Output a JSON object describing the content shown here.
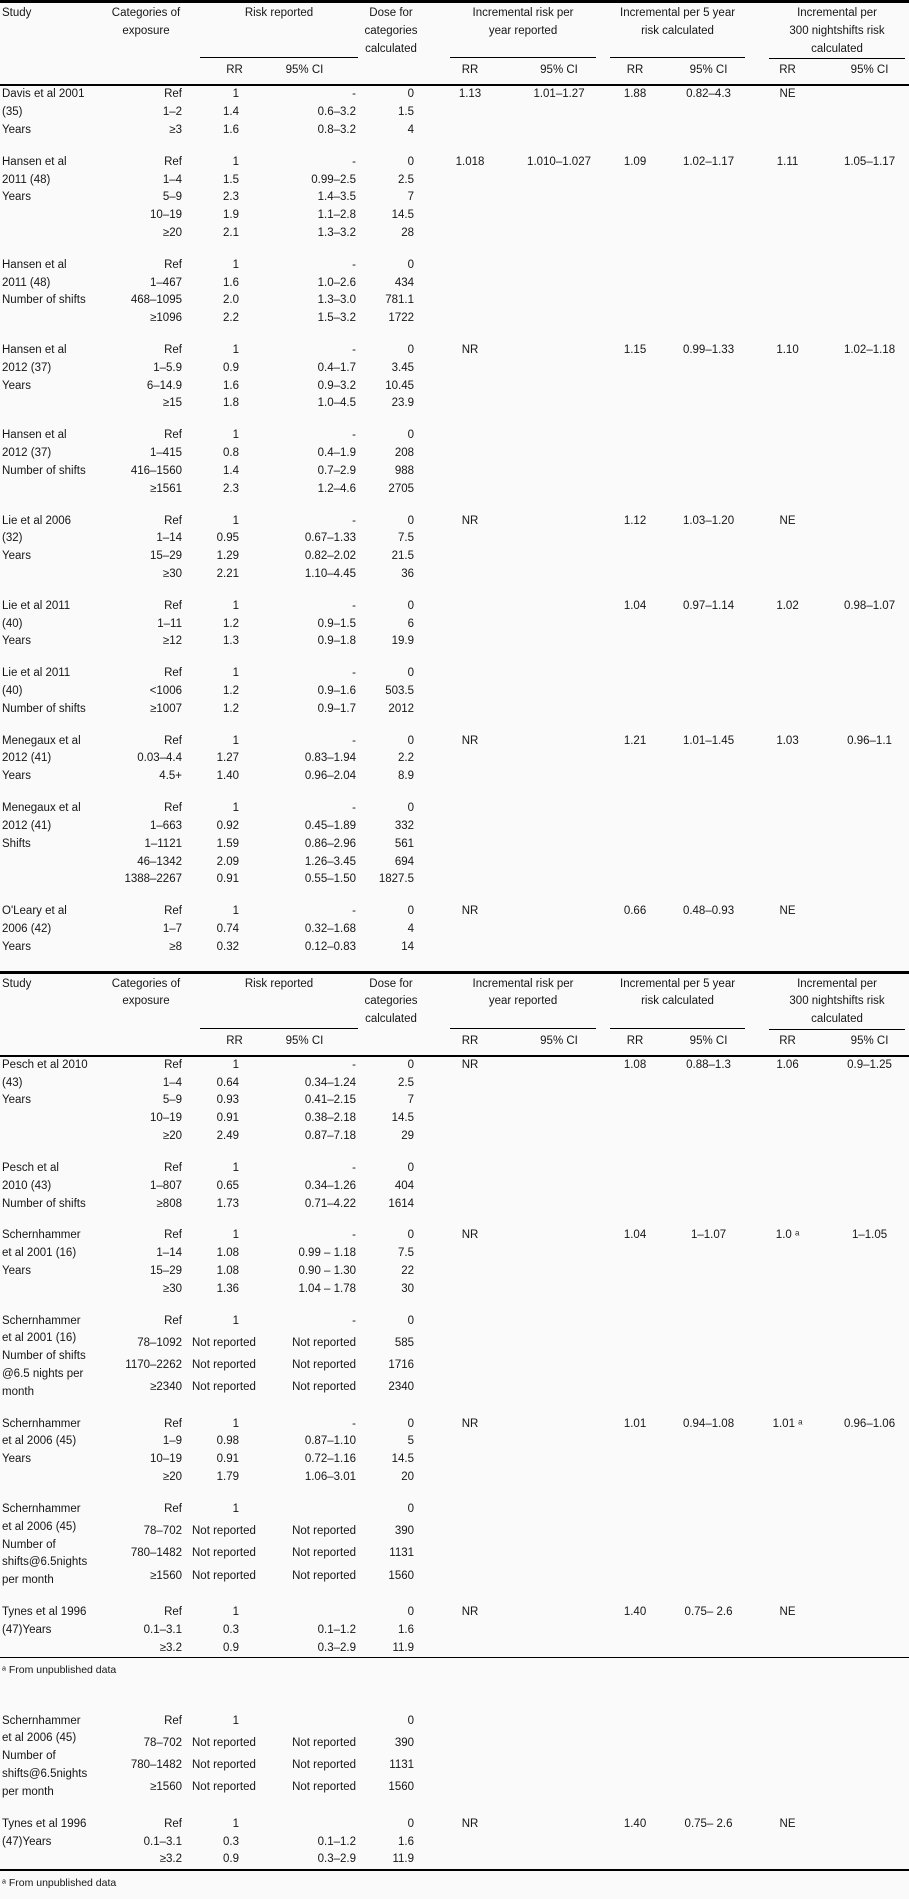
{
  "table": {
    "columns": {
      "study": "Study",
      "categories": "Categories of\nexposure",
      "risk_reported": "Risk reported",
      "dose": "Dose for\ncategories\ncalculated",
      "inc_year": "Incremental risk per\nyear reported",
      "inc_5year": "Incremental per 5 year\nrisk calculated",
      "inc_300": "Incremental per\n300 nightshifts risk\ncalculated",
      "rr": "RR",
      "ci": "95% CI"
    },
    "sections": [
      {
        "show_header": true,
        "blocks": [
          {
            "study": "Davis et al 2001\n(35)\nYears",
            "rows": [
              [
                "Ref",
                "1",
                "-",
                "0"
              ],
              [
                "1–2",
                "1.4",
                "0.6–3.2",
                "1.5"
              ],
              [
                "≥3",
                "1.6",
                "0.8–3.2",
                "4"
              ]
            ],
            "inc": [
              "1.13",
              "1.01–1.27",
              "1.88",
              "0.82–4.3",
              "NE",
              ""
            ]
          },
          {
            "study": "Hansen et al\n2011 (48)\nYears",
            "rows": [
              [
                "Ref",
                "1",
                "-",
                "0"
              ],
              [
                "1–4",
                "1.5",
                "0.99–2.5",
                "2.5"
              ],
              [
                "5–9",
                "2.3",
                "1.4–3.5",
                "7"
              ],
              [
                "10–19",
                "1.9",
                "1.1–2.8",
                "14.5"
              ],
              [
                "≥20",
                "2.1",
                "1.3–3.2",
                "28"
              ]
            ],
            "inc": [
              "1.018",
              "1.010–1.027",
              "1.09",
              "1.02–1.17",
              "1.11",
              "1.05–1.17"
            ]
          },
          {
            "study": "Hansen et al\n2011 (48)\nNumber of shifts",
            "rows": [
              [
                "Ref",
                "1",
                "-",
                "0"
              ],
              [
                "1–467",
                "1.6",
                "1.0–2.6",
                "434"
              ],
              [
                "468–1095",
                "2.0",
                "1.3–3.0",
                "781.1"
              ],
              [
                "≥1096",
                "2.2",
                "1.5–3.2",
                "1722"
              ]
            ]
          },
          {
            "study": "Hansen et al\n2012 (37)\nYears",
            "rows": [
              [
                "Ref",
                "1",
                "-",
                "0"
              ],
              [
                "1–5.9",
                "0.9",
                "0.4–1.7",
                "3.45"
              ],
              [
                "6–14.9",
                "1.6",
                "0.9–3.2",
                "10.45"
              ],
              [
                "≥15",
                "1.8",
                "1.0–4.5",
                "23.9"
              ]
            ],
            "inc": [
              "NR",
              "",
              "1.15",
              "0.99–1.33",
              "1.10",
              "1.02–1.18"
            ]
          },
          {
            "study": "Hansen et al\n2012 (37)\nNumber of shifts",
            "rows": [
              [
                "Ref",
                "1",
                "-",
                "0"
              ],
              [
                "1–415",
                "0.8",
                "0.4–1.9",
                "208"
              ],
              [
                "416–1560",
                "1.4",
                "0.7–2.9",
                "988"
              ],
              [
                "≥1561",
                "2.3",
                "1.2–4.6",
                "2705"
              ]
            ]
          },
          {
            "study": "Lie et al 2006\n(32)\nYears",
            "rows": [
              [
                "Ref",
                "1",
                "-",
                "0"
              ],
              [
                "1–14",
                "0.95",
                "0.67–1.33",
                "7.5"
              ],
              [
                "15–29",
                "1.29",
                "0.82–2.02",
                "21.5"
              ],
              [
                "≥30",
                "2.21",
                "1.10–4.45",
                "36"
              ]
            ],
            "inc": [
              "NR",
              "",
              "1.12",
              "1.03–1.20",
              "NE",
              ""
            ]
          },
          {
            "study": "Lie et al 2011\n(40)\nYears",
            "rows": [
              [
                "Ref",
                "1",
                "-",
                "0"
              ],
              [
                "1–11",
                "1.2",
                "0.9–1.5",
                "6"
              ],
              [
                "≥12",
                "1.3",
                "0.9–1.8",
                "19.9"
              ]
            ],
            "inc": [
              "",
              "",
              "1.04",
              "0.97–1.14",
              "1.02",
              "0.98–1.07"
            ]
          },
          {
            "study": "Lie et al 2011\n(40)\nNumber of shifts",
            "rows": [
              [
                "Ref",
                "1",
                "-",
                "0"
              ],
              [
                "<1006",
                "1.2",
                "0.9–1.6",
                "503.5"
              ],
              [
                "≥1007",
                "1.2",
                "0.9–1.7",
                "2012"
              ]
            ]
          },
          {
            "study": "Menegaux et al\n2012 (41)\nYears",
            "rows": [
              [
                "Ref",
                "1",
                "-",
                "0"
              ],
              [
                "0.03–4.4",
                "1.27",
                "0.83–1.94",
                "2.2"
              ],
              [
                "4.5+",
                "1.40",
                "0.96–2.04",
                "8.9"
              ]
            ],
            "inc": [
              "NR",
              "",
              "1.21",
              "1.01–1.45",
              "1.03",
              "0.96–1.1"
            ]
          },
          {
            "study": "Menegaux et al\n2012 (41)\nShifts",
            "rows": [
              [
                "Ref",
                "1",
                "-",
                "0"
              ],
              [
                "1–663",
                "0.92",
                "0.45–1.89",
                "332"
              ],
              [
                "1–1121",
                "1.59",
                "0.86–2.96",
                "561"
              ],
              [
                "46–1342",
                "2.09",
                "1.26–3.45",
                "694"
              ],
              [
                "1388–2267",
                "0.91",
                "0.55–1.50",
                "1827.5"
              ]
            ]
          },
          {
            "study": "O'Leary et al\n2006 (42)\nYears",
            "rows": [
              [
                "Ref",
                "1",
                "-",
                "0"
              ],
              [
                "1–7",
                "0.74",
                "0.32–1.68",
                "4"
              ],
              [
                "≥8",
                "0.32",
                "0.12–0.83",
                "14"
              ]
            ],
            "inc": [
              "NR",
              "",
              "0.66",
              "0.48–0.93",
              "NE",
              ""
            ]
          }
        ]
      },
      {
        "show_header": true,
        "footnote": "ᵃ From unpublished data",
        "heavy_rule": false,
        "blocks": [
          {
            "study": "Pesch et al 2010\n(43)\nYears",
            "rows": [
              [
                "Ref",
                "1",
                "-",
                "0"
              ],
              [
                "1–4",
                "0.64",
                "0.34–1.24",
                "2.5"
              ],
              [
                "5–9",
                "0.93",
                "0.41–2.15",
                "7"
              ],
              [
                "10–19",
                "0.91",
                "0.38–2.18",
                "14.5"
              ],
              [
                "≥20",
                "2.49",
                "0.87–7.18",
                "29"
              ]
            ],
            "inc": [
              "NR",
              "",
              "1.08",
              "0.88–1.3",
              "1.06",
              "0.9–1.25"
            ]
          },
          {
            "study": "Pesch et al\n2010 (43)\nNumber of shifts",
            "rows": [
              [
                "Ref",
                "1",
                "-",
                "0"
              ],
              [
                "1–807",
                "0.65",
                "0.34–1.26",
                "404"
              ],
              [
                "≥808",
                "1.73",
                "0.71–4.22",
                "1614"
              ]
            ]
          },
          {
            "study": "Schernhammer\net al 2001 (16)\nYears",
            "rows": [
              [
                "Ref",
                "1",
                "-",
                "0"
              ],
              [
                "1–14",
                "1.08",
                "0.99 – 1.18",
                "7.5"
              ],
              [
                "15–29",
                "1.08",
                "0.90 – 1.30",
                "22"
              ],
              [
                "≥30",
                "1.36",
                "1.04 – 1.78",
                "30"
              ]
            ],
            "inc": [
              "NR",
              "",
              "1.04",
              "1–1.07",
              "1.0 ᵃ",
              "1–1.05"
            ]
          },
          {
            "study": "Schernhammer\net al 2001 (16)\nNumber of shifts\n@6.5 nights per\nmonth",
            "rows": [
              [
                "Ref",
                "1",
                "-",
                "0"
              ],
              [
                "78–1092",
                "Not reported",
                "Not reported",
                "585"
              ],
              [
                "1170–2262",
                "Not reported",
                "Not reported",
                "1716"
              ],
              [
                "≥2340",
                "Not reported",
                "Not reported",
                "2340"
              ]
            ]
          },
          {
            "study": "Schernhammer\net al 2006 (45)\nYears",
            "rows": [
              [
                "Ref",
                "1",
                "-",
                "0"
              ],
              [
                "1–9",
                "0.98",
                "0.87–1.10",
                "5"
              ],
              [
                "10–19",
                "0.91",
                "0.72–1.16",
                "14.5"
              ],
              [
                "≥20",
                "1.79",
                "1.06–3.01",
                "20"
              ]
            ],
            "inc": [
              "NR",
              "",
              "1.01",
              "0.94–1.08",
              "1.01 ᵃ",
              "0.96–1.06"
            ]
          },
          {
            "study": "Schernhammer\net al 2006 (45)\nNumber of\nshifts@6.5nights\nper month",
            "rows": [
              [
                "Ref",
                "1",
                "",
                "0"
              ],
              [
                "78–702",
                "Not reported",
                "Not reported",
                "390"
              ],
              [
                "780–1482",
                "Not reported",
                "Not reported",
                "1131"
              ],
              [
                "≥1560",
                "Not reported",
                "Not reported",
                "1560"
              ]
            ]
          },
          {
            "study": "Tynes et al 1996\n(47)Years",
            "rows": [
              [
                "Ref",
                "1",
                "",
                "0"
              ],
              [
                "0.1–3.1",
                "0.3",
                "0.1–1.2",
                "1.6"
              ],
              [
                "≥3.2",
                "0.9",
                "0.3–2.9",
                "11.9"
              ]
            ],
            "inc": [
              "NR",
              "",
              "1.40",
              "0.75– 2.6",
              "NE",
              ""
            ]
          }
        ]
      },
      {
        "show_header": false,
        "footnote": "ᵃ From unpublished data",
        "heavy_rule": true,
        "blocks": [
          {
            "study": "Schernhammer\net al 2006 (45)\nNumber of\nshifts@6.5nights\nper month",
            "rows": [
              [
                "Ref",
                "1",
                "",
                "0"
              ],
              [
                "78–702",
                "Not reported",
                "Not reported",
                "390"
              ],
              [
                "780–1482",
                "Not reported",
                "Not reported",
                "1131"
              ],
              [
                "≥1560",
                "Not reported",
                "Not reported",
                "1560"
              ]
            ]
          },
          {
            "study": "Tynes et al 1996\n(47)Years",
            "rows": [
              [
                "Ref",
                "1",
                "",
                "0"
              ],
              [
                "0.1–3.1",
                "0.3",
                "0.1–1.2",
                "1.6"
              ],
              [
                "≥3.2",
                "0.9",
                "0.3–2.9",
                "11.9"
              ]
            ],
            "inc": [
              "NR",
              "",
              "1.40",
              "0.75– 2.6",
              "NE",
              ""
            ]
          }
        ]
      }
    ]
  }
}
